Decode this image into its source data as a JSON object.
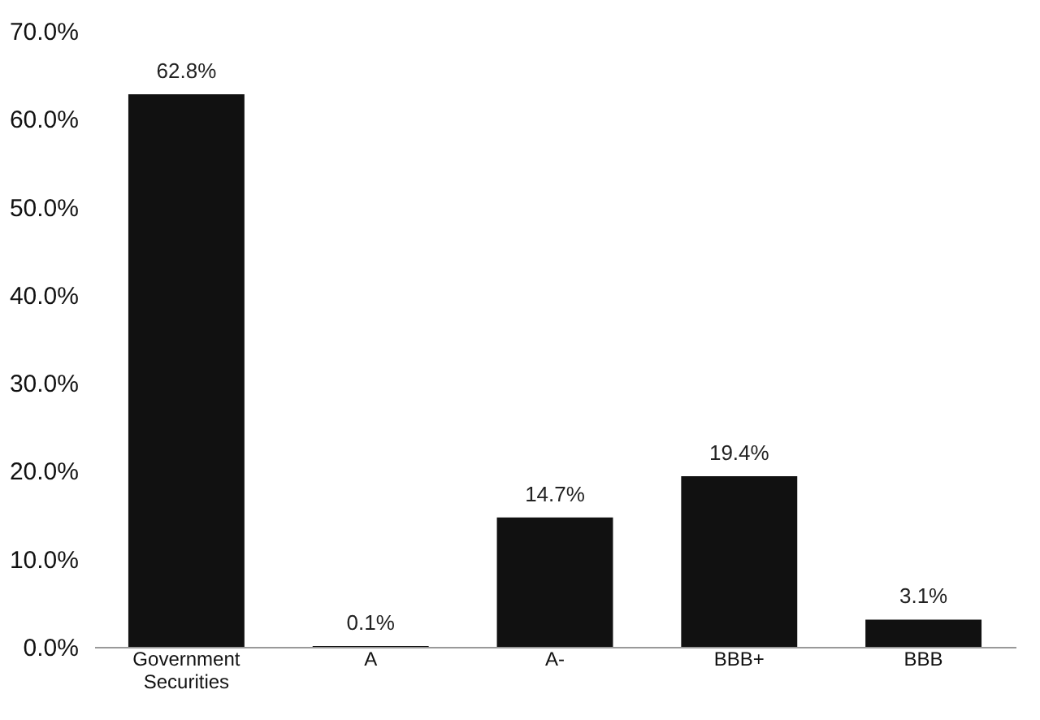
{
  "chart_data": {
    "type": "bar",
    "categories": [
      "Government Securities",
      "A",
      "A-",
      "BBB+",
      "BBB"
    ],
    "values": [
      62.8,
      0.1,
      14.7,
      19.4,
      3.1
    ],
    "value_labels": [
      "62.8%",
      "0.1%",
      "14.7%",
      "19.4%",
      "3.1%"
    ],
    "color": "#111111",
    "ylim": [
      0,
      70
    ],
    "yticks": [
      {
        "value": 0,
        "label": "0.0%"
      },
      {
        "value": 10,
        "label": "10.0%"
      },
      {
        "value": 20,
        "label": "20.0%"
      },
      {
        "value": 30,
        "label": "30.0%"
      },
      {
        "value": 40,
        "label": "40.0%"
      },
      {
        "value": 50,
        "label": "50.0%"
      },
      {
        "value": 60,
        "label": "60.0%"
      },
      {
        "value": 70,
        "label": "70.0%"
      }
    ],
    "grid": false
  }
}
